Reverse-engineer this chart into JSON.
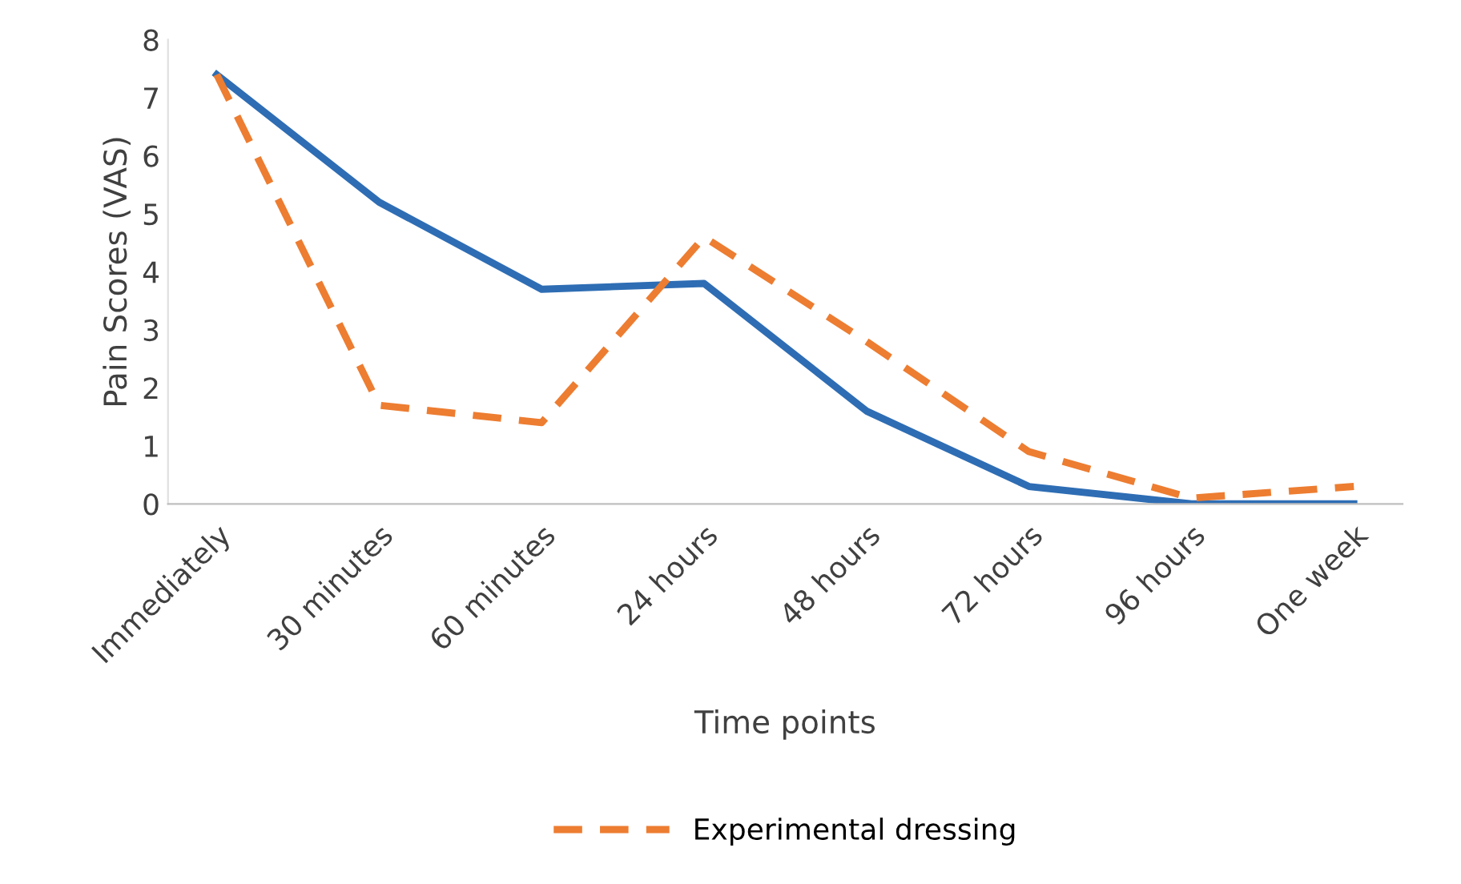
{
  "chart_data": {
    "type": "line",
    "xlabel": "Time points",
    "ylabel": "Pain Scores (VAS)",
    "categories": [
      "Immediately",
      "30 minutes",
      "60 minutes",
      "24 hours",
      "48 hours",
      "72 hours",
      "96 hours",
      "One week"
    ],
    "series": [
      {
        "color": "#2e6db4",
        "values": [
          7.4,
          5.2,
          3.7,
          3.8,
          1.6,
          0.3,
          0,
          0
        ],
        "line_style": "solid"
      },
      {
        "name": "Experimental dressing",
        "color": "#ed7d31",
        "values": [
          7.4,
          1.7,
          1.4,
          4.6,
          2.8,
          0.9,
          0.1,
          0.3
        ],
        "line_style": "dashed"
      }
    ],
    "ylim": [
      0,
      8
    ],
    "yticks": [
      0,
      1,
      2,
      3,
      4,
      5,
      6,
      7,
      8
    ],
    "grid": false,
    "legend": "bottom",
    "marker": "none"
  }
}
